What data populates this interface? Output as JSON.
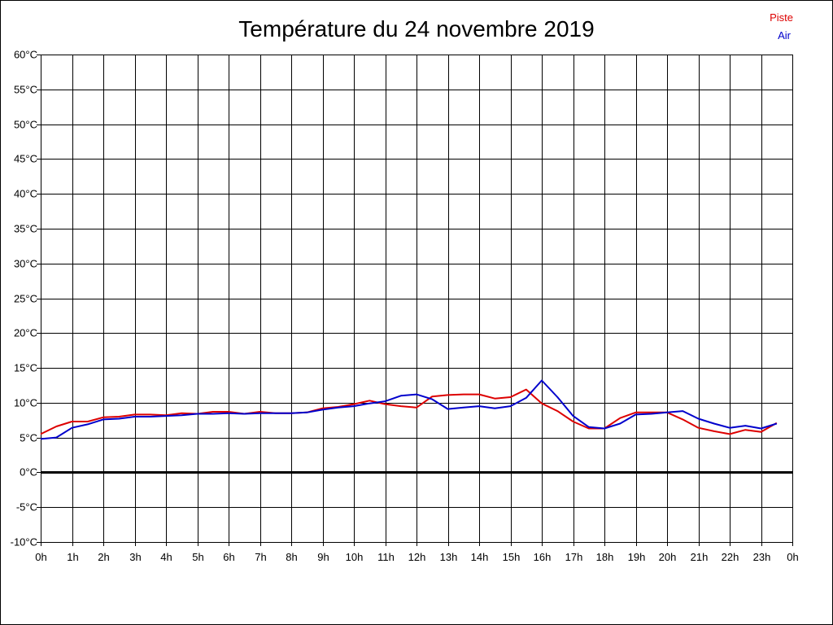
{
  "chart_data": {
    "type": "line",
    "title": "Température du 24 novembre 2019",
    "xlabel": "",
    "ylabel": "",
    "x_ticks": [
      "0h",
      "1h",
      "2h",
      "3h",
      "4h",
      "5h",
      "6h",
      "7h",
      "8h",
      "9h",
      "10h",
      "11h",
      "12h",
      "13h",
      "14h",
      "15h",
      "16h",
      "17h",
      "18h",
      "19h",
      "20h",
      "21h",
      "22h",
      "23h",
      "0h"
    ],
    "y_ticks": [
      "60°C",
      "55°C",
      "50°C",
      "45°C",
      "40°C",
      "35°C",
      "30°C",
      "25°C",
      "20°C",
      "15°C",
      "10°C",
      "5°C",
      "0°C",
      "-5°C",
      "-10°C"
    ],
    "xlim": [
      0,
      24
    ],
    "ylim": [
      -10,
      60
    ],
    "grid": true,
    "legend_position": "top-right",
    "series": [
      {
        "name": "Piste",
        "color": "#dd0000",
        "x": [
          0,
          0.5,
          1,
          1.5,
          2,
          2.5,
          3,
          3.5,
          4,
          4.5,
          5,
          5.5,
          6,
          6.5,
          7,
          7.5,
          8,
          8.5,
          9,
          9.5,
          10,
          10.5,
          11,
          11.5,
          12,
          12.5,
          13,
          13.5,
          14,
          14.5,
          15,
          15.5,
          16,
          16.5,
          17,
          17.5,
          18,
          18.5,
          19,
          19.5,
          20,
          20.5,
          21,
          21.5,
          22,
          22.5,
          23,
          23.5
        ],
        "values": [
          5.5,
          6.6,
          7.3,
          7.3,
          7.9,
          8.0,
          8.3,
          8.3,
          8.2,
          8.5,
          8.4,
          8.7,
          8.7,
          8.4,
          8.7,
          8.5,
          8.5,
          8.6,
          9.2,
          9.4,
          9.8,
          10.3,
          9.8,
          9.5,
          9.3,
          10.9,
          11.1,
          11.2,
          11.2,
          10.6,
          10.8,
          11.9,
          9.9,
          8.8,
          7.3,
          6.3,
          6.3,
          7.8,
          8.6,
          8.6,
          8.6,
          7.6,
          6.4,
          5.9,
          5.5,
          6.1,
          5.8,
          7.1
        ]
      },
      {
        "name": "Air",
        "color": "#0000cc",
        "x": [
          0,
          0.5,
          1,
          1.5,
          2,
          2.5,
          3,
          3.5,
          4,
          4.5,
          5,
          5.5,
          6,
          6.5,
          7,
          7.5,
          8,
          8.5,
          9,
          9.5,
          10,
          10.5,
          11,
          11.5,
          12,
          12.5,
          13,
          13.5,
          14,
          14.5,
          15,
          15.5,
          16,
          16.5,
          17,
          17.5,
          18,
          18.5,
          19,
          19.5,
          20,
          20.5,
          21,
          21.5,
          22,
          22.5,
          23,
          23.5
        ],
        "values": [
          4.8,
          5.0,
          6.4,
          6.9,
          7.6,
          7.7,
          8.0,
          8.0,
          8.1,
          8.2,
          8.4,
          8.4,
          8.5,
          8.4,
          8.5,
          8.5,
          8.5,
          8.6,
          9.0,
          9.3,
          9.5,
          9.9,
          10.2,
          11.0,
          11.2,
          10.5,
          9.1,
          9.3,
          9.5,
          9.2,
          9.5,
          10.7,
          13.2,
          10.8,
          8.1,
          6.5,
          6.3,
          7.0,
          8.3,
          8.4,
          8.6,
          8.8,
          7.7,
          7.0,
          6.4,
          6.7,
          6.3,
          7.0
        ]
      }
    ]
  }
}
